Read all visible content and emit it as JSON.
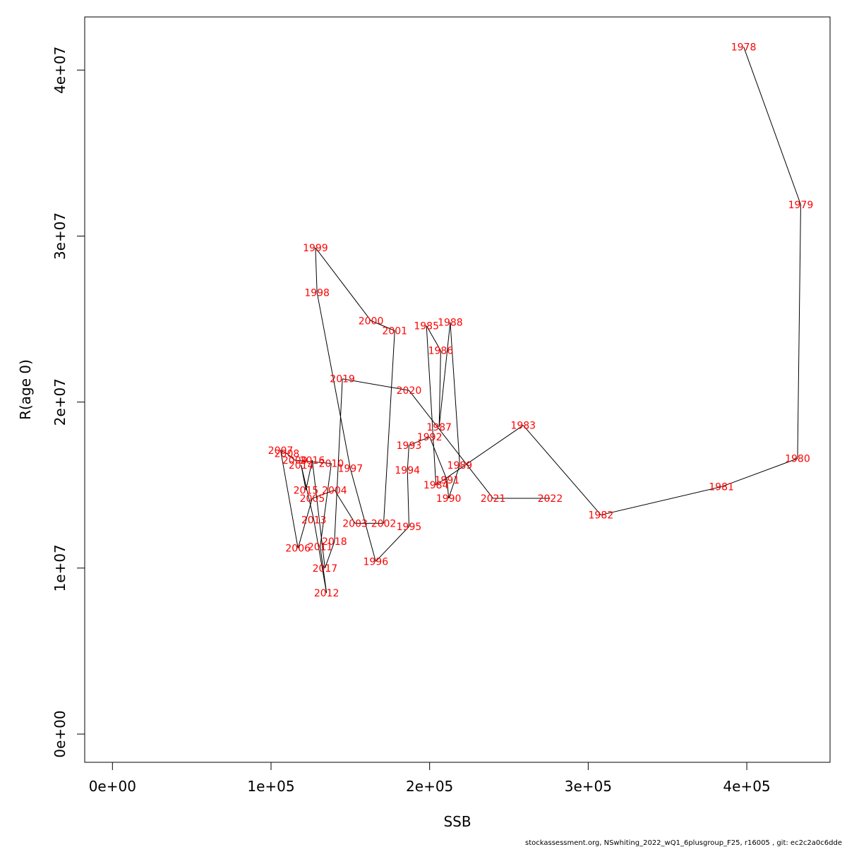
{
  "chart_data": {
    "type": "line",
    "xlabel": "SSB",
    "ylabel": "R(age 0)",
    "xlim": [
      -17500,
      452500
    ],
    "ylim": [
      -1700000,
      43200000
    ],
    "x_ticks": [
      0,
      100000,
      200000,
      300000,
      400000
    ],
    "x_tick_labels": [
      "0e+00",
      "1e+05",
      "2e+05",
      "3e+05",
      "4e+05"
    ],
    "y_ticks": [
      0,
      10000000,
      20000000,
      30000000,
      40000000
    ],
    "y_tick_labels": [
      "0e+00",
      "1e+07",
      "2e+07",
      "3e+07",
      "4e+07"
    ],
    "grid": false,
    "line_color": "#000000",
    "label_color": "#ff0000",
    "points": [
      {
        "label": "1978",
        "x": 398000,
        "y": 41400000
      },
      {
        "label": "1979",
        "x": 434000,
        "y": 31900000
      },
      {
        "label": "1980",
        "x": 432000,
        "y": 16600000
      },
      {
        "label": "1981",
        "x": 384000,
        "y": 14900000
      },
      {
        "label": "1982",
        "x": 308000,
        "y": 13200000
      },
      {
        "label": "1983",
        "x": 259000,
        "y": 18600000
      },
      {
        "label": "1984",
        "x": 204000,
        "y": 15000000
      },
      {
        "label": "1985",
        "x": 198000,
        "y": 24600000
      },
      {
        "label": "1986",
        "x": 207000,
        "y": 23100000
      },
      {
        "label": "1987",
        "x": 206000,
        "y": 18500000
      },
      {
        "label": "1988",
        "x": 213000,
        "y": 24800000
      },
      {
        "label": "1989",
        "x": 219000,
        "y": 16200000
      },
      {
        "label": "1990",
        "x": 212000,
        "y": 14200000
      },
      {
        "label": "1991",
        "x": 211000,
        "y": 15300000
      },
      {
        "label": "1992",
        "x": 200000,
        "y": 17900000
      },
      {
        "label": "1993",
        "x": 187000,
        "y": 17400000
      },
      {
        "label": "1994",
        "x": 186000,
        "y": 15900000
      },
      {
        "label": "1995",
        "x": 187000,
        "y": 12500000
      },
      {
        "label": "1996",
        "x": 166000,
        "y": 10400000
      },
      {
        "label": "1997",
        "x": 150000,
        "y": 16000000
      },
      {
        "label": "1998",
        "x": 129000,
        "y": 26600000
      },
      {
        "label": "1999",
        "x": 128000,
        "y": 29300000
      },
      {
        "label": "2000",
        "x": 163000,
        "y": 24900000
      },
      {
        "label": "2001",
        "x": 178000,
        "y": 24300000
      },
      {
        "label": "2002",
        "x": 171000,
        "y": 12700000
      },
      {
        "label": "2003",
        "x": 153000,
        "y": 12700000
      },
      {
        "label": "2004",
        "x": 140000,
        "y": 14700000
      },
      {
        "label": "2005",
        "x": 126000,
        "y": 14200000
      },
      {
        "label": "2006",
        "x": 117000,
        "y": 11200000
      },
      {
        "label": "2007",
        "x": 106000,
        "y": 17100000
      },
      {
        "label": "2008",
        "x": 110000,
        "y": 16900000
      },
      {
        "label": "2009",
        "x": 115000,
        "y": 16500000
      },
      {
        "label": "2010",
        "x": 138000,
        "y": 16300000
      },
      {
        "label": "2011",
        "x": 131000,
        "y": 11300000
      },
      {
        "label": "2012",
        "x": 135000,
        "y": 8500000
      },
      {
        "label": "2013",
        "x": 127000,
        "y": 12900000
      },
      {
        "label": "2014",
        "x": 119000,
        "y": 16200000
      },
      {
        "label": "2015",
        "x": 122000,
        "y": 14700000
      },
      {
        "label": "2016",
        "x": 126000,
        "y": 16500000
      },
      {
        "label": "2017",
        "x": 134000,
        "y": 10000000
      },
      {
        "label": "2018",
        "x": 140000,
        "y": 11600000
      },
      {
        "label": "2019",
        "x": 145000,
        "y": 21400000
      },
      {
        "label": "2020",
        "x": 187000,
        "y": 20700000
      },
      {
        "label": "2021",
        "x": 240000,
        "y": 14200000
      },
      {
        "label": "2022",
        "x": 276000,
        "y": 14200000
      }
    ]
  },
  "footer": "stockassessment.org, NSwhiting_2022_wQ1_6plusgroup_F25, r16005 , git: ec2c2a0c6dde"
}
